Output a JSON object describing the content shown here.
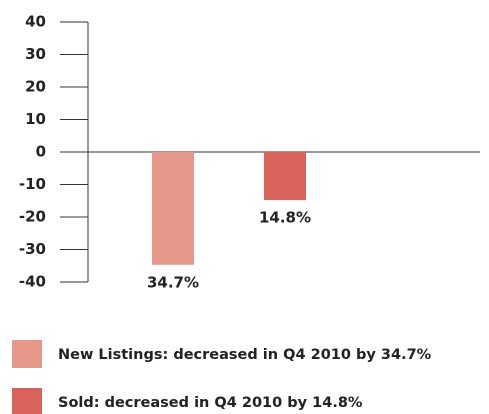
{
  "chart_data": {
    "type": "bar",
    "categories": [
      null
    ],
    "series": [
      {
        "name": "New Listings: decreased in Q4 2010 by 34.7%",
        "color": "#e5988a",
        "values": [
          -34.7
        ],
        "value_labels": [
          "34.7%"
        ]
      },
      {
        "name": "Sold: decreased in Q4 2010 by 14.8%",
        "color": "#d9625a",
        "values": [
          -14.8
        ],
        "value_labels": [
          "14.8%"
        ]
      }
    ],
    "ylim": [
      -40,
      40
    ],
    "yticks": [
      -40,
      -30,
      -20,
      -10,
      0,
      10,
      20,
      30,
      40
    ],
    "legend": "bottom"
  }
}
